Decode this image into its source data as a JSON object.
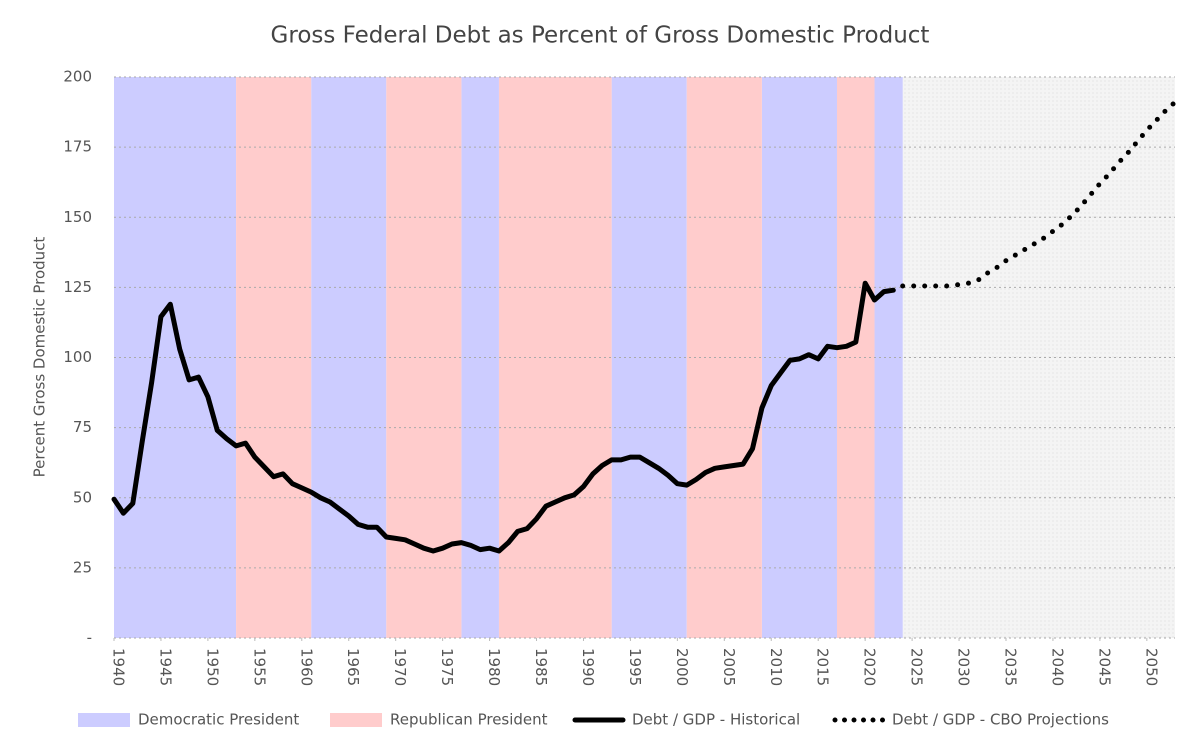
{
  "chart_data": {
    "type": "line",
    "title": "Gross Federal Debt as Percent of Gross Domestic Product",
    "y_label": "Percent Gross Domestic Product",
    "xlim": [
      1940,
      2053
    ],
    "xticks": [
      1940,
      1945,
      1950,
      1955,
      1960,
      1965,
      1970,
      1975,
      1980,
      1985,
      1990,
      1995,
      2000,
      2005,
      2010,
      2015,
      2020,
      2025,
      2030,
      2035,
      2040,
      2045,
      2050
    ],
    "ylim": [
      0,
      200
    ],
    "yticks": [
      {
        "value": 0,
        "label": "-"
      },
      25,
      50,
      75,
      100,
      125,
      150,
      175,
      200
    ],
    "grid": true,
    "bands": [
      {
        "name": "Democratic President",
        "color": "#ccccff",
        "spans": [
          [
            1940,
            1953
          ],
          [
            1961,
            1969
          ],
          [
            1977,
            1981
          ],
          [
            1993,
            2001
          ],
          [
            2009,
            2017
          ],
          [
            2021,
            2024
          ]
        ]
      },
      {
        "name": "Republican President",
        "color": "#ffcccc",
        "spans": [
          [
            1953,
            1961
          ],
          [
            1969,
            1977
          ],
          [
            1981,
            1993
          ],
          [
            2001,
            2009
          ],
          [
            2017,
            2021
          ]
        ]
      }
    ],
    "series": [
      {
        "name": "Debt / GDP - Historical",
        "color": "#000000",
        "style": "solid",
        "x": [
          1940,
          1941,
          1942,
          1943,
          1944,
          1945,
          1946,
          1947,
          1948,
          1949,
          1950,
          1951,
          1952,
          1953,
          1954,
          1955,
          1956,
          1957,
          1958,
          1959,
          1960,
          1961,
          1962,
          1963,
          1964,
          1965,
          1966,
          1967,
          1968,
          1969,
          1970,
          1971,
          1972,
          1973,
          1974,
          1975,
          1976,
          1977,
          1978,
          1979,
          1980,
          1981,
          1982,
          1983,
          1984,
          1985,
          1986,
          1987,
          1988,
          1989,
          1990,
          1991,
          1992,
          1993,
          1994,
          1995,
          1996,
          1997,
          1998,
          1999,
          2000,
          2001,
          2002,
          2003,
          2004,
          2005,
          2006,
          2007,
          2008,
          2009,
          2010,
          2011,
          2012,
          2013,
          2014,
          2015,
          2016,
          2017,
          2018,
          2019,
          2020,
          2021,
          2022,
          2023
        ],
        "values": [
          49.5,
          44.5,
          48,
          70,
          91,
          114.5,
          119,
          103,
          92,
          93,
          86,
          74,
          71,
          68.5,
          69.5,
          64.5,
          61,
          57.5,
          58.5,
          55,
          53.5,
          52,
          50,
          48.5,
          46,
          43.5,
          40.5,
          39.5,
          39.5,
          36,
          35.5,
          35,
          33.5,
          32,
          31,
          32,
          33.5,
          34,
          33,
          31.5,
          32,
          31,
          34,
          38,
          39,
          42.5,
          47,
          48.5,
          50,
          51,
          54,
          58.5,
          61.5,
          63.5,
          63.5,
          64.5,
          64.5,
          62.5,
          60.5,
          58,
          55,
          54.5,
          56.5,
          59,
          60.5,
          61,
          61.5,
          62,
          67.5,
          82,
          90,
          94.5,
          99,
          99.5,
          101,
          99.5,
          104,
          103.5,
          104,
          105.5,
          126.5,
          120.5,
          123.5,
          124
        ]
      },
      {
        "name": "Debt / GDP - CBO Projections",
        "color": "#000000",
        "style": "dotted",
        "x": [
          2024,
          2025,
          2026,
          2027,
          2028,
          2029,
          2030,
          2031,
          2032,
          2033,
          2034,
          2035,
          2036,
          2037,
          2038,
          2039,
          2040,
          2041,
          2042,
          2043,
          2044,
          2045,
          2046,
          2047,
          2048,
          2049,
          2050,
          2051,
          2052,
          2053
        ],
        "values": [
          125.5,
          125.5,
          125.5,
          125.5,
          125.5,
          125.5,
          126,
          126.5,
          127.5,
          130,
          132,
          134.5,
          136.5,
          138.5,
          140.5,
          142.5,
          145,
          147.5,
          150.5,
          154,
          158,
          162,
          165.5,
          169.5,
          173,
          177,
          181,
          184.5,
          188,
          191
        ]
      }
    ]
  }
}
